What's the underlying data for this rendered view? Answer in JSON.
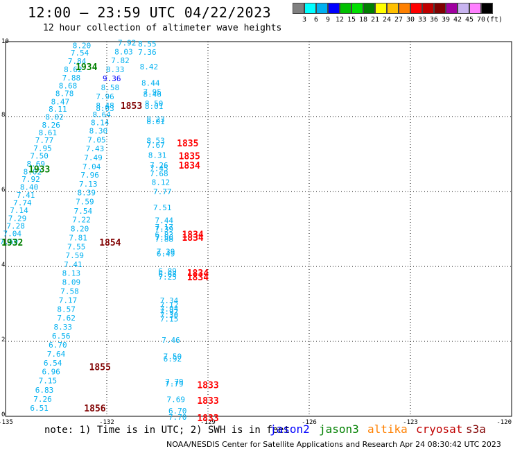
{
  "header": {
    "title": "12:00 — 23:59 UTC 04/22/2023",
    "subtitle": "12 hour collection of altimeter wave heights"
  },
  "scale": {
    "unit": "(ft)",
    "colors": [
      "#808080",
      "#00ffff",
      "#00b0f0",
      "#0000ff",
      "#00c000",
      "#00e000",
      "#008000",
      "#ffff00",
      "#ffc000",
      "#ff8000",
      "#ff0000",
      "#c00000",
      "#800000",
      "#a000a0",
      "#c8b4f0",
      "#ff80ff",
      "#000000"
    ],
    "labels": [
      "3",
      "6",
      "9",
      "12",
      "15",
      "18",
      "21",
      "24",
      "27",
      "30",
      "33",
      "36",
      "39",
      "42",
      "45",
      "70"
    ]
  },
  "axes": {
    "x": {
      "min": -135,
      "max": -120,
      "ticks": [
        "-135",
        "-132",
        "-129",
        "-126",
        "-123",
        "-120"
      ]
    },
    "y": {
      "min": 0,
      "max": 10,
      "ticks": [
        "0",
        "2",
        "4",
        "6",
        "8",
        "10"
      ]
    },
    "grid": true
  },
  "map_data": {
    "colors": {
      "jason3": "#008000",
      "sat_1850": "#800000",
      "s3a": "#ff0000",
      "swh_low": "#00b0f0",
      "swh_mid": "#00a0e8",
      "swh_blue": "#0000ff"
    },
    "wave_heights": [
      {
        "lon": -132.74,
        "lat": 9.9,
        "text": "8.20"
      },
      {
        "lon": -132.8,
        "lat": 9.7,
        "text": "7.54"
      },
      {
        "lon": -132.88,
        "lat": 9.48,
        "text": "7.84"
      },
      {
        "lon": -133.0,
        "lat": 9.26,
        "text": "8.62"
      },
      {
        "lon": -133.05,
        "lat": 9.04,
        "text": "7.88"
      },
      {
        "lon": -133.15,
        "lat": 8.82,
        "text": "8.68"
      },
      {
        "lon": -133.25,
        "lat": 8.62,
        "text": "8.78"
      },
      {
        "lon": -133.38,
        "lat": 8.4,
        "text": "8.47"
      },
      {
        "lon": -133.45,
        "lat": 8.2,
        "text": "8.11"
      },
      {
        "lon": -133.55,
        "lat": 7.99,
        "text": "8.02"
      },
      {
        "lon": -133.65,
        "lat": 7.78,
        "text": "8.26"
      },
      {
        "lon": -133.75,
        "lat": 7.57,
        "text": "8.61"
      },
      {
        "lon": -133.85,
        "lat": 7.37,
        "text": "7.77"
      },
      {
        "lon": -133.9,
        "lat": 7.16,
        "text": "7.95"
      },
      {
        "lon": -134.0,
        "lat": 6.95,
        "text": "7.50"
      },
      {
        "lon": -134.1,
        "lat": 6.74,
        "text": "8.69"
      },
      {
        "lon": -134.2,
        "lat": 6.53,
        "text": "8.02"
      },
      {
        "lon": -134.25,
        "lat": 6.33,
        "text": "7.92"
      },
      {
        "lon": -134.3,
        "lat": 6.12,
        "text": "8.40"
      },
      {
        "lon": -134.4,
        "lat": 5.91,
        "text": "7.41"
      },
      {
        "lon": -134.5,
        "lat": 5.7,
        "text": "7.74"
      },
      {
        "lon": -134.6,
        "lat": 5.5,
        "text": "7.14"
      },
      {
        "lon": -134.65,
        "lat": 5.29,
        "text": "7.29"
      },
      {
        "lon": -134.7,
        "lat": 5.08,
        "text": "7.28"
      },
      {
        "lon": -134.8,
        "lat": 4.88,
        "text": "7.04"
      },
      {
        "lon": -134.9,
        "lat": 4.67,
        "text": "7.69"
      },
      {
        "lon": -131.4,
        "lat": 9.97,
        "text": "7.92"
      },
      {
        "lon": -131.5,
        "lat": 9.73,
        "text": "8.03"
      },
      {
        "lon": -131.6,
        "lat": 9.5,
        "text": "7.82"
      },
      {
        "lon": -131.75,
        "lat": 9.26,
        "text": "8.33"
      },
      {
        "lon": -131.85,
        "lat": 9.02,
        "text": "9.36",
        "color": "swh_blue"
      },
      {
        "lon": -131.9,
        "lat": 8.78,
        "text": "8.58"
      },
      {
        "lon": -132.05,
        "lat": 8.54,
        "text": "7.96"
      },
      {
        "lon": -132.05,
        "lat": 8.3,
        "text": "8.48"
      },
      {
        "lon": -132.05,
        "lat": 8.22,
        "text": "8.03"
      },
      {
        "lon": -132.15,
        "lat": 8.06,
        "text": "8.64"
      },
      {
        "lon": -132.2,
        "lat": 7.84,
        "text": "8.14"
      },
      {
        "lon": -132.25,
        "lat": 7.62,
        "text": "8.30"
      },
      {
        "lon": -132.3,
        "lat": 7.38,
        "text": "7.05"
      },
      {
        "lon": -132.35,
        "lat": 7.15,
        "text": "7.43"
      },
      {
        "lon": -132.4,
        "lat": 6.91,
        "text": "7.49"
      },
      {
        "lon": -132.45,
        "lat": 6.67,
        "text": "7.04"
      },
      {
        "lon": -132.5,
        "lat": 6.44,
        "text": "7.96"
      },
      {
        "lon": -132.55,
        "lat": 6.2,
        "text": "7.13"
      },
      {
        "lon": -132.6,
        "lat": 5.97,
        "text": "8.39"
      },
      {
        "lon": -132.65,
        "lat": 5.73,
        "text": "7.59"
      },
      {
        "lon": -132.7,
        "lat": 5.48,
        "text": "7.54"
      },
      {
        "lon": -132.75,
        "lat": 5.25,
        "text": "7.22"
      },
      {
        "lon": -132.8,
        "lat": 5.01,
        "text": "8.20"
      },
      {
        "lon": -132.85,
        "lat": 4.77,
        "text": "7.81"
      },
      {
        "lon": -132.9,
        "lat": 4.53,
        "text": "7.55"
      },
      {
        "lon": -132.95,
        "lat": 4.3,
        "text": "7.59"
      },
      {
        "lon": -133.0,
        "lat": 4.06,
        "text": "7.41"
      },
      {
        "lon": -133.05,
        "lat": 3.82,
        "text": "8.13"
      },
      {
        "lon": -133.05,
        "lat": 3.58,
        "text": "8.09"
      },
      {
        "lon": -133.1,
        "lat": 3.34,
        "text": "7.58"
      },
      {
        "lon": -133.15,
        "lat": 3.1,
        "text": "7.17"
      },
      {
        "lon": -133.2,
        "lat": 2.86,
        "text": "8.57"
      },
      {
        "lon": -133.2,
        "lat": 2.63,
        "text": "7.62"
      },
      {
        "lon": -133.3,
        "lat": 2.39,
        "text": "8.33"
      },
      {
        "lon": -133.35,
        "lat": 2.15,
        "text": "6.56"
      },
      {
        "lon": -133.45,
        "lat": 1.91,
        "text": "6.70"
      },
      {
        "lon": -133.5,
        "lat": 1.67,
        "text": "7.64"
      },
      {
        "lon": -133.6,
        "lat": 1.43,
        "text": "6.54"
      },
      {
        "lon": -133.65,
        "lat": 1.19,
        "text": "6.96"
      },
      {
        "lon": -133.75,
        "lat": 0.95,
        "text": "7.15"
      },
      {
        "lon": -133.85,
        "lat": 0.7,
        "text": "6.83"
      },
      {
        "lon": -133.9,
        "lat": 0.46,
        "text": "7.26"
      },
      {
        "lon": -134.0,
        "lat": 0.22,
        "text": "6.51"
      },
      {
        "lon": -130.8,
        "lat": 9.94,
        "text": "8.55"
      },
      {
        "lon": -130.8,
        "lat": 9.72,
        "text": "7.36"
      },
      {
        "lon": -130.75,
        "lat": 9.33,
        "text": "8.42"
      },
      {
        "lon": -130.7,
        "lat": 8.9,
        "text": "8.44"
      },
      {
        "lon": -130.65,
        "lat": 8.66,
        "text": "7.95"
      },
      {
        "lon": -130.65,
        "lat": 8.6,
        "text": "8.46"
      },
      {
        "lon": -130.6,
        "lat": 8.35,
        "text": "8.50"
      },
      {
        "lon": -130.6,
        "lat": 8.28,
        "text": "8.01"
      },
      {
        "lon": -130.55,
        "lat": 7.93,
        "text": "8.23"
      },
      {
        "lon": -130.55,
        "lat": 7.87,
        "text": "8.01"
      },
      {
        "lon": -130.55,
        "lat": 7.36,
        "text": "8.53"
      },
      {
        "lon": -130.55,
        "lat": 7.24,
        "text": "7.67"
      },
      {
        "lon": -130.5,
        "lat": 6.97,
        "text": "8.31"
      },
      {
        "lon": -130.45,
        "lat": 6.7,
        "text": "7.26"
      },
      {
        "lon": -130.45,
        "lat": 6.62,
        "text": "7.45"
      },
      {
        "lon": -130.45,
        "lat": 6.48,
        "text": "7.68"
      },
      {
        "lon": -130.4,
        "lat": 6.25,
        "text": "8.12"
      },
      {
        "lon": -130.35,
        "lat": 6.0,
        "text": "7.77"
      },
      {
        "lon": -130.35,
        "lat": 5.57,
        "text": "7.51"
      },
      {
        "lon": -130.3,
        "lat": 5.23,
        "text": "7.44"
      },
      {
        "lon": -130.3,
        "lat": 5.06,
        "text": "7.17"
      },
      {
        "lon": -130.3,
        "lat": 5.0,
        "text": "7.39"
      },
      {
        "lon": -130.3,
        "lat": 4.85,
        "text": "6.83"
      },
      {
        "lon": -130.3,
        "lat": 4.78,
        "text": "7.56"
      },
      {
        "lon": -130.3,
        "lat": 4.73,
        "text": "7.88"
      },
      {
        "lon": -130.25,
        "lat": 4.4,
        "text": "7.39"
      },
      {
        "lon": -130.25,
        "lat": 4.34,
        "text": "6.49"
      },
      {
        "lon": -130.2,
        "lat": 3.88,
        "text": "6.89"
      },
      {
        "lon": -130.2,
        "lat": 3.8,
        "text": "6.68"
      },
      {
        "lon": -130.2,
        "lat": 3.72,
        "text": "7.25"
      },
      {
        "lon": -130.15,
        "lat": 3.09,
        "text": "7.34"
      },
      {
        "lon": -130.15,
        "lat": 2.97,
        "text": "7.12"
      },
      {
        "lon": -130.15,
        "lat": 2.87,
        "text": "7.94"
      },
      {
        "lon": -130.15,
        "lat": 2.8,
        "text": "7.92"
      },
      {
        "lon": -130.15,
        "lat": 2.7,
        "text": "7.30"
      },
      {
        "lon": -130.15,
        "lat": 2.6,
        "text": "7.15"
      },
      {
        "lon": -130.1,
        "lat": 2.04,
        "text": "7.46"
      },
      {
        "lon": -130.05,
        "lat": 1.6,
        "text": "7.50"
      },
      {
        "lon": -130.05,
        "lat": 1.54,
        "text": "6.92"
      },
      {
        "lon": -130.0,
        "lat": 0.93,
        "text": "7.79"
      },
      {
        "lon": -130.0,
        "lat": 0.87,
        "text": "7.79"
      },
      {
        "lon": -129.95,
        "lat": 0.45,
        "text": "7.69"
      },
      {
        "lon": -129.9,
        "lat": 0.15,
        "text": "6.70"
      },
      {
        "lon": -129.9,
        "lat": -0.02,
        "text": "7.70"
      }
    ],
    "pass_times": [
      {
        "lon": -132.6,
        "lat": 9.33,
        "text": "1934",
        "color": "jason3"
      },
      {
        "lon": -134.0,
        "lat": 6.6,
        "text": "1933",
        "color": "jason3"
      },
      {
        "lon": -134.8,
        "lat": 4.65,
        "text": "1932",
        "color": "jason3"
      },
      {
        "lon": -131.27,
        "lat": 8.3,
        "text": "1853",
        "color": "sat_1850"
      },
      {
        "lon": -131.9,
        "lat": 4.65,
        "text": "1854",
        "color": "sat_1850"
      },
      {
        "lon": -132.2,
        "lat": 1.32,
        "text": "1855",
        "color": "sat_1850"
      },
      {
        "lon": -132.35,
        "lat": 0.22,
        "text": "1856",
        "color": "sat_1850"
      },
      {
        "lon": -129.6,
        "lat": 7.3,
        "text": "1835",
        "color": "s3a"
      },
      {
        "lon": -129.55,
        "lat": 6.95,
        "text": "1835",
        "color": "s3a"
      },
      {
        "lon": -129.55,
        "lat": 6.7,
        "text": "1834",
        "color": "s3a"
      },
      {
        "lon": -129.45,
        "lat": 4.86,
        "text": "1834",
        "color": "s3a"
      },
      {
        "lon": -129.45,
        "lat": 4.78,
        "text": "1834",
        "color": "s3a"
      },
      {
        "lon": -129.3,
        "lat": 3.83,
        "text": "1834",
        "color": "s3a"
      },
      {
        "lon": -129.3,
        "lat": 3.72,
        "text": "1834",
        "color": "s3a"
      },
      {
        "lon": -129.0,
        "lat": 0.84,
        "text": "1833",
        "color": "s3a"
      },
      {
        "lon": -129.0,
        "lat": 0.43,
        "text": "1833",
        "color": "s3a"
      },
      {
        "lon": -129.0,
        "lat": -0.04,
        "text": "1833",
        "color": "s3a"
      }
    ]
  },
  "footer": {
    "note": "note: 1) Time is in UTC; 2) SWH is in feet",
    "legend": [
      {
        "label": "jason2",
        "color": "#0000ff"
      },
      {
        "label": "jason3",
        "color": "#008000"
      },
      {
        "label": "altika",
        "color": "#ff8000"
      },
      {
        "label": "cryosat",
        "color": "#c00000"
      },
      {
        "label": "s3a",
        "color": "#800000"
      }
    ],
    "credit": "NOAA/NESDIS Center for Satellite Applications and Research   Apr 24 08:30:42 UTC 2023"
  }
}
